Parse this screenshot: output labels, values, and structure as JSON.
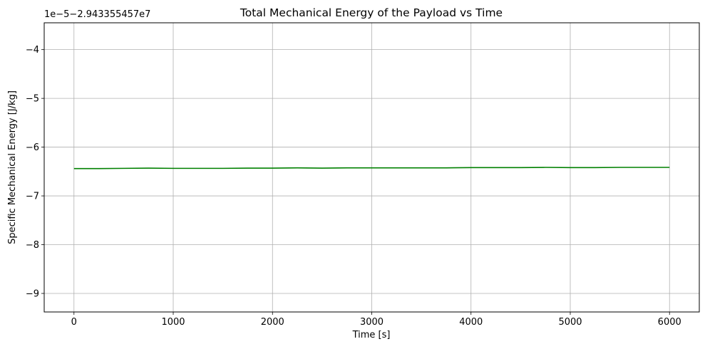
{
  "chart_data": {
    "type": "line",
    "title": "Total Mechanical Energy of the Payload vs Time",
    "xlabel": "Time [s]",
    "ylabel": "Specific Mechanical Energy [J/kg]",
    "y_offset_text": "1e−5−2.943355457e7",
    "xlim": [
      -300,
      6300
    ],
    "ylim": [
      -9.38,
      -3.45
    ],
    "x_ticks": [
      0,
      1000,
      2000,
      3000,
      4000,
      5000,
      6000
    ],
    "x_tick_labels": [
      "0",
      "1000",
      "2000",
      "3000",
      "4000",
      "5000",
      "6000"
    ],
    "y_ticks": [
      -4,
      -5,
      -6,
      -7,
      -8,
      -9
    ],
    "y_tick_labels": [
      "−4",
      "−5",
      "−6",
      "−7",
      "−8",
      "−9"
    ],
    "grid": true,
    "series": [
      {
        "color": "#008000",
        "x": [
          0,
          250,
          500,
          750,
          1000,
          1250,
          1500,
          1750,
          2000,
          2250,
          2500,
          2750,
          3000,
          3250,
          3500,
          3750,
          4000,
          4250,
          4500,
          4750,
          5000,
          5250,
          5500,
          5750,
          6000
        ],
        "y": [
          -6.44,
          -6.44,
          -6.435,
          -6.43,
          -6.435,
          -6.435,
          -6.435,
          -6.43,
          -6.43,
          -6.425,
          -6.43,
          -6.425,
          -6.425,
          -6.425,
          -6.425,
          -6.425,
          -6.42,
          -6.42,
          -6.42,
          -6.415,
          -6.42,
          -6.42,
          -6.415,
          -6.415,
          -6.415
        ]
      }
    ]
  }
}
